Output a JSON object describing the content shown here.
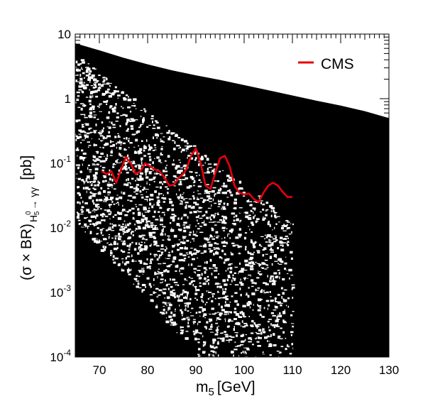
{
  "chart_data": {
    "type": "scatter",
    "title": "",
    "xlabel": "m_5 [GeV]",
    "xlabel_main": "m",
    "xlabel_sub": "5",
    "xlabel_unit": "[GeV]",
    "ylabel_main": "(σ × BR)",
    "ylabel_sub_H": "H",
    "ylabel_sub_5": "5",
    "ylabel_sup_0": "0",
    "ylabel_decay": "→ γγ",
    "ylabel_unit": "[pb]",
    "xlim": [
      65,
      130
    ],
    "ylim": [
      0.0001,
      10
    ],
    "yscale": "log",
    "x_ticks": [
      70,
      80,
      90,
      100,
      110,
      120,
      130
    ],
    "x_tick_labels": [
      "70",
      "80",
      "90",
      "100",
      "110",
      "120",
      "130"
    ],
    "y_ticks": [
      {
        "base": "10",
        "exp": "-4",
        "plain": ""
      },
      {
        "base": "10",
        "exp": "-3",
        "plain": ""
      },
      {
        "base": "10",
        "exp": "-2",
        "plain": ""
      },
      {
        "base": "10",
        "exp": "-1",
        "plain": ""
      },
      {
        "base": "",
        "exp": "",
        "plain": "1"
      },
      {
        "base": "",
        "exp": "",
        "plain": "10"
      }
    ],
    "scan_upper_envelope": {
      "x": [
        65,
        70,
        75,
        80,
        85,
        90,
        95,
        100,
        105,
        110,
        115,
        120,
        125,
        130
      ],
      "y": [
        7.2,
        5.6,
        4.3,
        3.4,
        2.75,
        2.3,
        1.95,
        1.62,
        1.35,
        1.12,
        0.93,
        0.78,
        0.64,
        0.5
      ]
    },
    "legend": [
      {
        "name": "CMS",
        "color": "#e8000b"
      }
    ],
    "legend_position": "top-right",
    "series": [
      {
        "name": "CMS",
        "color": "#e8000b",
        "x": [
          70.5,
          71.5,
          72.5,
          73.5,
          74.5,
          75.5,
          76.5,
          77.5,
          78.5,
          79.5,
          80.5,
          81.5,
          82.5,
          83.5,
          84.5,
          85.5,
          86.5,
          87.5,
          88.0,
          89.0,
          90.0,
          91.0,
          92.0,
          93.0,
          94.0,
          95.0,
          96.0,
          97.0,
          98.0,
          99.0,
          100.0,
          101.0,
          102.0,
          103.0,
          104.0,
          105.0,
          106.0,
          107.0,
          108.0,
          109.0,
          110.0
        ],
        "y": [
          0.075,
          0.068,
          0.075,
          0.05,
          0.08,
          0.125,
          0.1,
          0.068,
          0.075,
          0.1,
          0.09,
          0.08,
          0.075,
          0.06,
          0.045,
          0.047,
          0.06,
          0.07,
          0.08,
          0.13,
          0.17,
          0.1,
          0.045,
          0.04,
          0.07,
          0.12,
          0.13,
          0.09,
          0.045,
          0.035,
          0.033,
          0.034,
          0.028,
          0.025,
          0.035,
          0.045,
          0.05,
          0.045,
          0.036,
          0.03,
          0.03
        ]
      }
    ]
  }
}
